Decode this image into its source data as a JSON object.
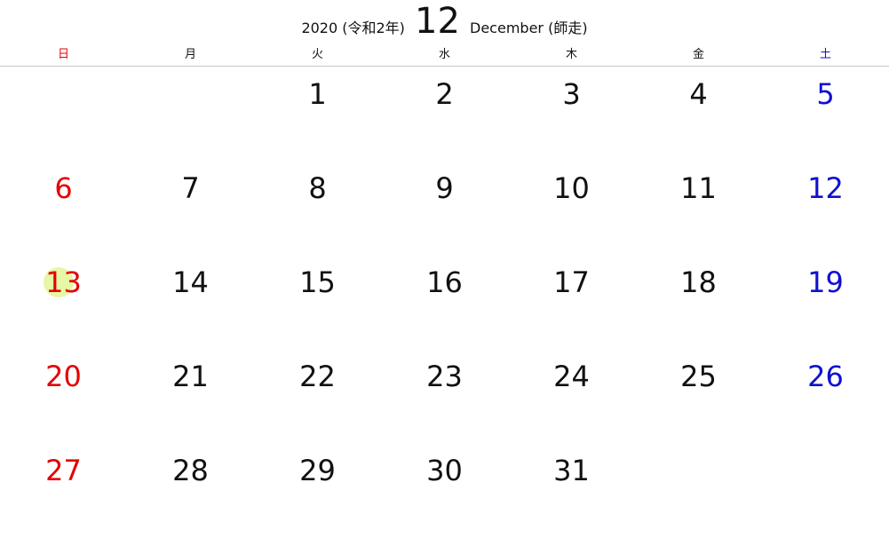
{
  "header": {
    "year_label": "2020 (令和2年)",
    "month_number": "12",
    "month_name": "December (師走)"
  },
  "weekdays": [
    "日",
    "月",
    "火",
    "水",
    "木",
    "金",
    "土"
  ],
  "colors": {
    "sunday": "#e60000",
    "saturday": "#1010d0",
    "weekday": "#111111",
    "today_highlight": "#e6f7a6"
  },
  "highlighted_day": "13",
  "weeks": [
    [
      "",
      "",
      "1",
      "2",
      "3",
      "4",
      "5"
    ],
    [
      "6",
      "7",
      "8",
      "9",
      "10",
      "11",
      "12"
    ],
    [
      "13",
      "14",
      "15",
      "16",
      "17",
      "18",
      "19"
    ],
    [
      "20",
      "21",
      "22",
      "23",
      "24",
      "25",
      "26"
    ],
    [
      "27",
      "28",
      "29",
      "30",
      "31",
      "",
      ""
    ]
  ]
}
